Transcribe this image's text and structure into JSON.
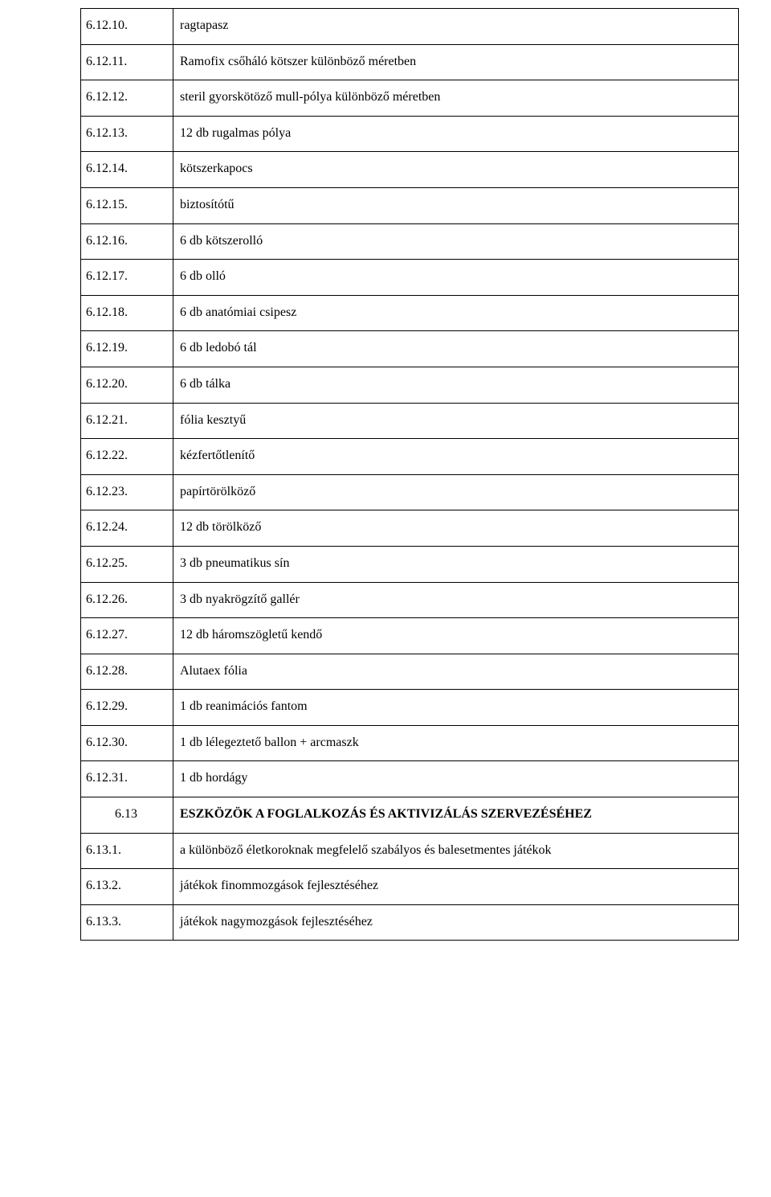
{
  "rows": [
    {
      "num": "6.12.10.",
      "text": "ragtapasz",
      "bold": false,
      "center": false
    },
    {
      "num": "6.12.11.",
      "text": "Ramofix csőháló kötszer különböző méretben",
      "bold": false,
      "center": false
    },
    {
      "num": "6.12.12.",
      "text": "steril gyorskötöző mull-pólya különböző méretben",
      "bold": false,
      "center": false
    },
    {
      "num": "6.12.13.",
      "text": "12 db rugalmas pólya",
      "bold": false,
      "center": false
    },
    {
      "num": "6.12.14.",
      "text": "kötszerkapocs",
      "bold": false,
      "center": false
    },
    {
      "num": "6.12.15.",
      "text": "biztosítótű",
      "bold": false,
      "center": false
    },
    {
      "num": "6.12.16.",
      "text": "6 db kötszerolló",
      "bold": false,
      "center": false
    },
    {
      "num": "6.12.17.",
      "text": "6 db olló",
      "bold": false,
      "center": false
    },
    {
      "num": "6.12.18.",
      "text": "6 db anatómiai csipesz",
      "bold": false,
      "center": false
    },
    {
      "num": "6.12.19.",
      "text": "6 db ledobó tál",
      "bold": false,
      "center": false
    },
    {
      "num": "6.12.20.",
      "text": "6 db tálka",
      "bold": false,
      "center": false
    },
    {
      "num": "6.12.21.",
      "text": "fólia kesztyű",
      "bold": false,
      "center": false
    },
    {
      "num": "6.12.22.",
      "text": "kézfertőtlenítő",
      "bold": false,
      "center": false
    },
    {
      "num": "6.12.23.",
      "text": "papírtörölköző",
      "bold": false,
      "center": false
    },
    {
      "num": "6.12.24.",
      "text": "12 db törölköző",
      "bold": false,
      "center": false
    },
    {
      "num": "6.12.25.",
      "text": "3 db pneumatikus sín",
      "bold": false,
      "center": false
    },
    {
      "num": "6.12.26.",
      "text": "3 db nyakrögzítő gallér",
      "bold": false,
      "center": false
    },
    {
      "num": "6.12.27.",
      "text": "12 db háromszögletű kendő",
      "bold": false,
      "center": false
    },
    {
      "num": "6.12.28.",
      "text": "Alutaex fólia",
      "bold": false,
      "center": false
    },
    {
      "num": "6.12.29.",
      "text": "1 db reanimációs fantom",
      "bold": false,
      "center": false
    },
    {
      "num": "6.12.30.",
      "text": "1 db lélegeztető ballon + arcmaszk",
      "bold": false,
      "center": false
    },
    {
      "num": "6.12.31.",
      "text": "1 db hordágy",
      "bold": false,
      "center": false
    },
    {
      "num": "6.13",
      "text": "ESZKÖZÖK A FOGLALKOZÁS ÉS AKTIVIZÁLÁS SZERVEZÉSÉHEZ",
      "bold": true,
      "center": true
    },
    {
      "num": "6.13.1.",
      "text": "a különböző életkoroknak megfelelő szabályos és balesetmentes játékok",
      "bold": false,
      "center": false
    },
    {
      "num": "6.13.2.",
      "text": "játékok finommozgások fejlesztéséhez",
      "bold": false,
      "center": false
    },
    {
      "num": "6.13.3.",
      "text": "játékok nagymozgások fejlesztéséhez",
      "bold": false,
      "center": false
    }
  ]
}
